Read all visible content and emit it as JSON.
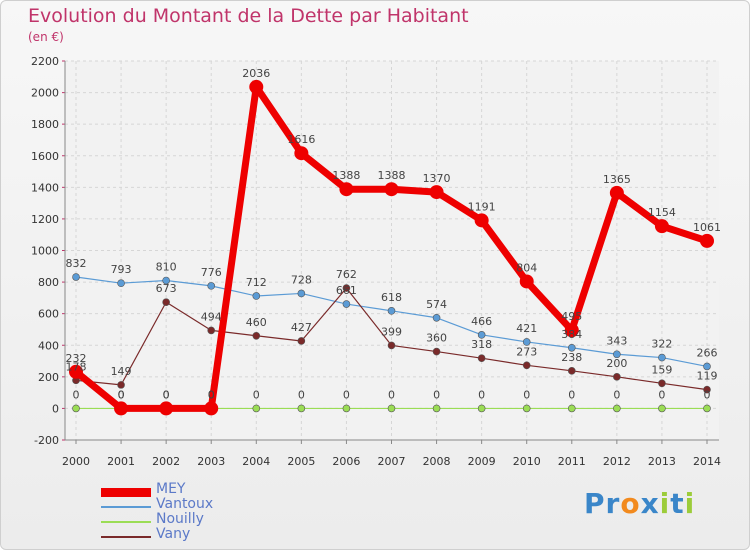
{
  "title": "Evolution du Montant de la Dette par Habitant",
  "unit_label": "(en €)",
  "logo": {
    "parts": [
      "Pr",
      "o",
      "x",
      "i",
      "t",
      "i"
    ],
    "colors": [
      "#3a86c9",
      "#f28a1e",
      "#3a86c9",
      "#9ccc3a",
      "#3a86c9",
      "#9ccc3a"
    ]
  },
  "chart_data": {
    "type": "line",
    "x": [
      "2000",
      "2001",
      "2002",
      "2003",
      "2004",
      "2005",
      "2006",
      "2007",
      "2008",
      "2009",
      "2010",
      "2011",
      "2012",
      "2013",
      "2014"
    ],
    "ylim": [
      -200,
      2200
    ],
    "yticks": [
      -200,
      0,
      200,
      400,
      600,
      800,
      1000,
      1200,
      1400,
      1600,
      1800,
      2000,
      2200
    ],
    "grid": true,
    "legend_placement": "bottom-left",
    "series": [
      {
        "name": "MEY",
        "color": "#ee0000",
        "values": [
          232,
          0,
          0,
          0,
          2036,
          1616,
          1388,
          1388,
          1370,
          1191,
          804,
          495,
          1365,
          1154,
          1061
        ],
        "labels": [
          "232",
          "0",
          "0",
          "0",
          "2036",
          "1616",
          "1388",
          "1388",
          "1370",
          "1191",
          "804",
          "495",
          "1365",
          "1154",
          "1061"
        ]
      },
      {
        "name": "Vantoux",
        "color": "#5b9bd5",
        "values": [
          832,
          793,
          810,
          776,
          712,
          728,
          661,
          618,
          574,
          466,
          421,
          384,
          343,
          322,
          266
        ],
        "labels": [
          "832",
          "793",
          "810",
          "776",
          "712",
          "728",
          "661",
          "618",
          "574",
          "466",
          "421",
          "384",
          "343",
          "322",
          "266"
        ]
      },
      {
        "name": "Nouilly",
        "color": "#9bdd55",
        "values": [
          0,
          0,
          0,
          0,
          0,
          0,
          0,
          0,
          0,
          0,
          0,
          0,
          0,
          0,
          0
        ],
        "labels": [
          "0",
          "0",
          "0",
          "0",
          "0",
          "0",
          "0",
          "0",
          "0",
          "0",
          "0",
          "0",
          "0",
          "0",
          "0"
        ]
      },
      {
        "name": "Vany",
        "color": "#7a2a2a",
        "values": [
          178,
          149,
          673,
          494,
          460,
          427,
          762,
          399,
          360,
          318,
          273,
          238,
          200,
          159,
          119
        ],
        "labels": [
          "178",
          "149",
          "673",
          "494",
          "460",
          "427",
          "762",
          "399",
          "360",
          "318",
          "273",
          "238",
          "200",
          "159",
          "119"
        ]
      }
    ]
  }
}
